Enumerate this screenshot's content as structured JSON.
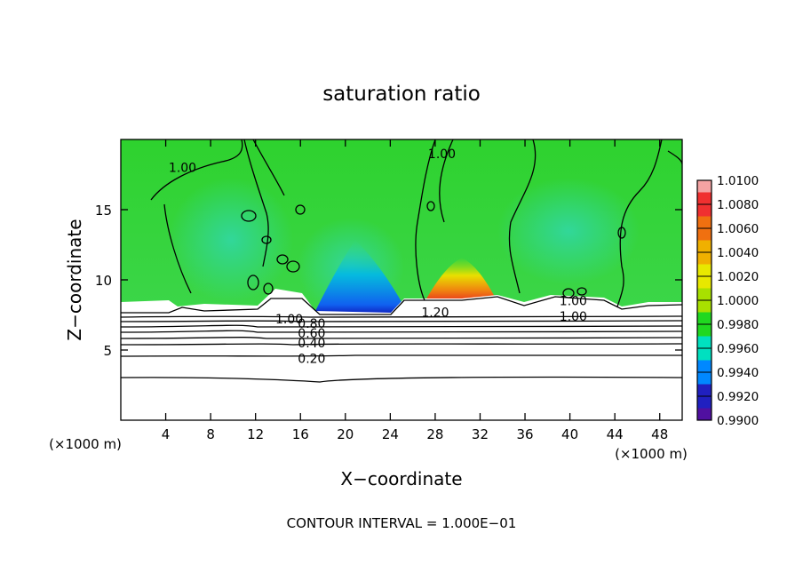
{
  "chart_data": {
    "type": "heatmap",
    "title": "saturation ratio",
    "xlabel": "X−coordinate",
    "ylabel": "Z−coordinate",
    "x_unit_left": "(×1000 m)",
    "x_unit_right": "(×1000 m)",
    "footer": "CONTOUR INTERVAL = 1.000E−01",
    "xlim": [
      0,
      50
    ],
    "ylim": [
      0,
      20
    ],
    "x_ticks": [
      4,
      8,
      12,
      16,
      20,
      24,
      28,
      32,
      36,
      40,
      44,
      48
    ],
    "y_ticks": [
      5,
      10,
      15
    ],
    "colorbar": {
      "min": 0.99,
      "max": 1.01,
      "labels": [
        "1.0100",
        "1.0080",
        "1.0060",
        "1.0040",
        "1.0020",
        "1.0000",
        "0.9980",
        "0.9960",
        "0.9940",
        "0.9920",
        "0.9900"
      ],
      "colors": [
        "#f4a3a3",
        "#f03030",
        "#f07010",
        "#f0b000",
        "#e8e800",
        "#a8e000",
        "#20d820",
        "#00e0c0",
        "#0088ff",
        "#2020c0",
        "#5010a0"
      ]
    },
    "contour_labels": [
      {
        "text": "1.00",
        "x": 5.5,
        "z": 18.0
      },
      {
        "text": "1.00",
        "x": 28.6,
        "z": 19.0
      },
      {
        "text": "1.20",
        "x": 28.0,
        "z": 7.7
      },
      {
        "text": "1.00",
        "x": 15.0,
        "z": 7.2
      },
      {
        "text": "0.80",
        "x": 17.0,
        "z": 6.9
      },
      {
        "text": "0.60",
        "x": 17.0,
        "z": 6.2
      },
      {
        "text": "0.40",
        "x": 17.0,
        "z": 5.5
      },
      {
        "text": "0.20",
        "x": 17.0,
        "z": 4.4
      },
      {
        "text": "1.00",
        "x": 40.3,
        "z": 8.5
      },
      {
        "text": "1.00",
        "x": 40.3,
        "z": 7.4
      }
    ]
  }
}
